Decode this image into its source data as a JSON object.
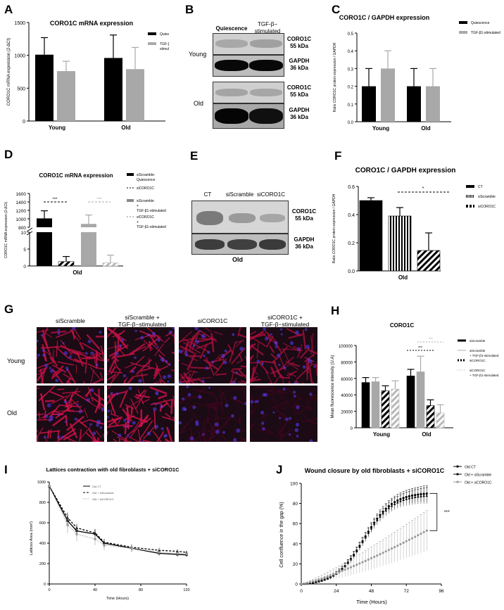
{
  "panels": {
    "A": {
      "label": "A",
      "title": "CORO1C mRNA expression"
    },
    "B": {
      "label": "B",
      "lane_quiescence": "Quiescence",
      "lane_tgf": "TGF-β− stimulated",
      "row_young": "Young",
      "row_old": "Old",
      "coro_line1": "CORO1C",
      "coro_line2": "55 kDa",
      "gapdh_line1": "GAPDH",
      "gapdh_line2": "36 kDa"
    },
    "C": {
      "label": "C",
      "title": "CORO1C / GAPDH expression"
    },
    "D": {
      "label": "D",
      "title": "CORO1C mRNA expression"
    },
    "E": {
      "label": "E",
      "lane_ct": "CT",
      "lane_siscr": "siScramble",
      "lane_sicoro": "siCORO1C",
      "coro_line1": "CORO1C",
      "coro_line2": "55 kDa",
      "gapdh_line1": "GAPDH",
      "gapdh_line2": "36 kDa",
      "caption": "Old"
    },
    "F": {
      "label": "F",
      "title": "CORO1C / GAPDH expression"
    },
    "G": {
      "label": "G",
      "col1": "siScramble",
      "col2": "siScramble +\nTGF-β−stimulated",
      "col3": "siCORO1C",
      "col4": "siCORO1C +\nTGF-β−stimulated",
      "row_young": "Young",
      "row_old": "Old"
    },
    "H": {
      "label": "H",
      "title": "CORO1C"
    },
    "I": {
      "label": "I",
      "title": "Lattices contraction with old fibroblasts + siCORO1C"
    },
    "J": {
      "label": "J",
      "title": "Wound closure by old  fibroblasts + siCORO1C"
    }
  },
  "chart_data": [
    {
      "id": "A",
      "type": "bar",
      "title": "CORO1C mRNA expression",
      "ylabel": "CORO1C mRNA expression (2-ΔCt)",
      "categories": [
        "Young",
        "Old"
      ],
      "ylim": [
        0,
        1500
      ],
      "yticks": [
        "0",
        "500",
        "1000",
        "1500"
      ],
      "series": [
        {
          "name": "Quiescence",
          "color": "#000000",
          "values": [
            1010,
            960
          ],
          "err": [
            260,
            350
          ]
        },
        {
          "name": "TGF-β1-stimulated",
          "color": "#aaaaaa",
          "values": [
            760,
            790
          ],
          "err": [
            150,
            330
          ]
        }
      ]
    },
    {
      "id": "C",
      "type": "bar",
      "title": "CORO1C / GAPDH expression",
      "ylabel": "Ratio CORO1C protein expression / GAPDH",
      "categories": [
        "Young",
        "Old"
      ],
      "ylim": [
        0,
        0.5
      ],
      "yticks": [
        "0.0",
        "0.1",
        "0.2",
        "0.3",
        "0.4",
        "0.5"
      ],
      "series": [
        {
          "name": "Quiescence",
          "color": "#000000",
          "values": [
            0.2,
            0.2
          ],
          "err": [
            0.1,
            0.1
          ]
        },
        {
          "name": "TGF-β1-stimulated",
          "color": "#aaaaaa",
          "values": [
            0.3,
            0.2
          ],
          "err": [
            0.1,
            0.1
          ]
        }
      ]
    },
    {
      "id": "D",
      "type": "bar",
      "title": "CORO1C mRNA expression",
      "ylabel": "CORO1C mRNA expression (2-ΔCt)",
      "categories": [
        "Old"
      ],
      "yticks_low": [
        "0",
        "5",
        "10"
      ],
      "yticks_high": [
        "800",
        "1000",
        "1200",
        "1400",
        "1600"
      ],
      "series": [
        {
          "name": "siScramble-Quiescence",
          "values": [
            1010
          ]
        },
        {
          "name": "siCORO1C",
          "values": [
            1.3
          ]
        },
        {
          "name": "siScramble + TGF-β1-stimulated",
          "values": [
            880
          ]
        },
        {
          "name": "siCORO1C + TGF-β1-stimulated",
          "values": [
            0.9
          ]
        }
      ],
      "annotations": [
        "***",
        "***"
      ]
    },
    {
      "id": "F",
      "type": "bar",
      "title": "CORO1C / GAPDH expression",
      "ylabel": "Ratio CORO1C protein expression / GAPDH",
      "categories": [
        "Old"
      ],
      "ylim": [
        0,
        0.6
      ],
      "yticks": [
        "0.0",
        "0.2",
        "0.4",
        "0.6"
      ],
      "series": [
        {
          "name": "CT",
          "values": [
            0.5
          ],
          "err": [
            0.02
          ]
        },
        {
          "name": "siScramble",
          "values": [
            0.39
          ],
          "err": [
            0.06
          ]
        },
        {
          "name": "siCORO1C",
          "values": [
            0.145
          ],
          "err": [
            0.125
          ]
        }
      ],
      "annotations": [
        "*"
      ]
    },
    {
      "id": "H",
      "type": "bar",
      "title": "CORO1C",
      "ylabel": "Mean fluorescence intensity (U.A)",
      "categories": [
        "Young",
        "Old"
      ],
      "ylim": [
        0,
        100000
      ],
      "yticks": [
        "0",
        "20000",
        "40000",
        "60000",
        "80000",
        "100000"
      ],
      "series": [
        {
          "name": "siScramble",
          "values": [
            55000,
            63000
          ],
          "err": [
            6000,
            8000
          ]
        },
        {
          "name": "siScramble + TGF-β1-stimulated",
          "values": [
            56000,
            68000
          ],
          "err": [
            5000,
            19000
          ]
        },
        {
          "name": "siCORO1C",
          "values": [
            45000,
            27000
          ],
          "err": [
            6000,
            7000
          ]
        },
        {
          "name": "siCORO1C + TGF-β1-stimulated",
          "values": [
            47000,
            18000
          ],
          "err": [
            10000,
            10000
          ]
        }
      ],
      "annotations": [
        "***",
        "***"
      ]
    },
    {
      "id": "I",
      "type": "line",
      "title": "Lattices contraction with old fibroblasts + siCORO1C",
      "xlabel": "Time (Hours)",
      "ylabel": "Lattices Area (mm²)",
      "xlim": [
        0,
        120
      ],
      "ylim": [
        0,
        1000
      ],
      "xticks": [
        "0",
        "40",
        "80",
        "120"
      ],
      "yticks": [
        "0",
        "200",
        "400",
        "600",
        "800",
        "1000"
      ],
      "x": [
        0,
        16,
        24,
        40,
        48,
        72,
        96,
        112,
        120
      ],
      "series": [
        {
          "name": "Old CT",
          "values": [
            960,
            620,
            520,
            490,
            400,
            350,
            300,
            290,
            285
          ]
        },
        {
          "name": "Old + siScramble",
          "values": [
            960,
            650,
            550,
            500,
            410,
            360,
            330,
            320,
            310
          ]
        },
        {
          "name": "Old + siCORO1C",
          "values": [
            960,
            580,
            490,
            440,
            380,
            350,
            310,
            300,
            295
          ]
        }
      ]
    },
    {
      "id": "J",
      "type": "line",
      "title": "Wound closure by old  fibroblasts + siCORO1C",
      "xlabel": "Time (Hours)",
      "ylabel": "Cell confluence in the gap (%)",
      "xlim": [
        0,
        96
      ],
      "ylim": [
        0,
        100
      ],
      "xticks": [
        "0",
        "24",
        "48",
        "72",
        "96"
      ],
      "yticks": [
        "0",
        "20",
        "40",
        "60",
        "80",
        "100"
      ],
      "annotations": [
        "***"
      ],
      "series": [
        {
          "name": "Old CT",
          "x_end": 86,
          "end": 90,
          "err": 8
        },
        {
          "name": "Old + siScramble",
          "x_end": 86,
          "end": 88,
          "err": 8
        },
        {
          "name": "Old + siCORO1C",
          "x_end": 86,
          "end": 53,
          "err": 20
        }
      ]
    }
  ]
}
